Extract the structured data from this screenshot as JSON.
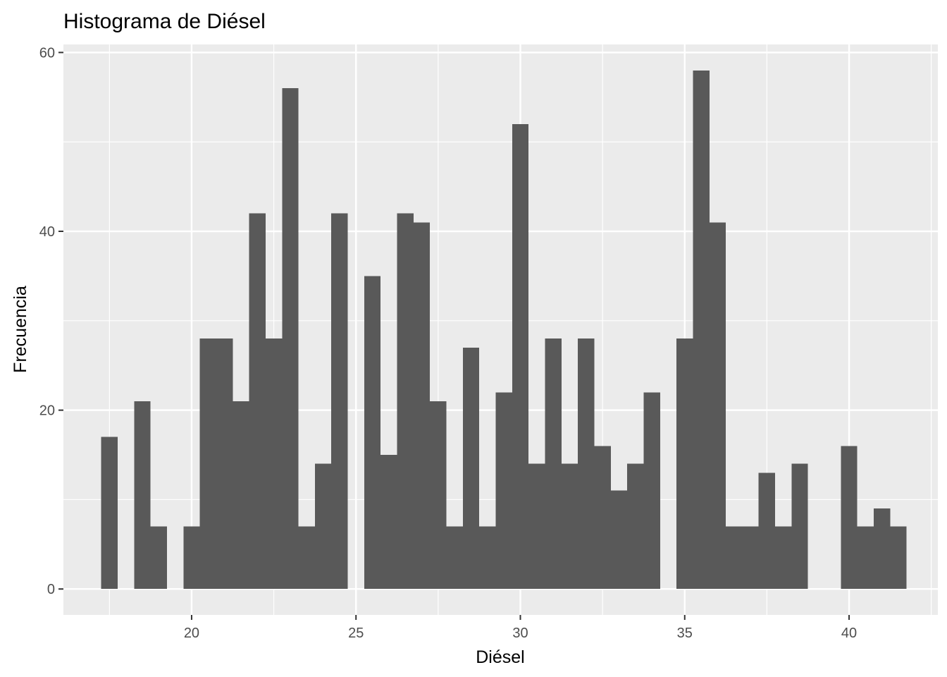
{
  "chart_data": {
    "type": "bar",
    "title": "Histograma de Diésel",
    "xlabel": "Diésel",
    "ylabel": "Frecuencia",
    "xlim": [
      16.1,
      42.7
    ],
    "ylim": [
      -2.9,
      60.9
    ],
    "x_ticks": [
      20,
      25,
      30,
      35,
      40
    ],
    "y_ticks": [
      0,
      20,
      40,
      60
    ],
    "grid": true,
    "bin_width": 0.5,
    "series": [
      {
        "bin_start": [
          17.25,
          17.75,
          18.25,
          18.75,
          19.25,
          19.75,
          20.25,
          20.75,
          21.25,
          21.75,
          22.25,
          22.75,
          23.25,
          23.75,
          24.25,
          24.75,
          25.25,
          25.75,
          26.25,
          26.75,
          27.25,
          27.75,
          28.25,
          28.75,
          29.25,
          29.75,
          30.25,
          30.75,
          31.25,
          31.75,
          32.25,
          32.75,
          33.25,
          33.75,
          34.25,
          34.75,
          35.25,
          35.75,
          36.25,
          36.75,
          37.25,
          37.75,
          38.25,
          38.75,
          39.25,
          39.75,
          40.25,
          40.75,
          41.25
        ],
        "values": [
          17,
          0,
          21,
          7,
          0,
          7,
          28,
          28,
          21,
          42,
          28,
          56,
          7,
          14,
          42,
          0,
          35,
          15,
          42,
          41,
          21,
          7,
          27,
          7,
          22,
          52,
          14,
          28,
          14,
          28,
          16,
          11,
          14,
          22,
          0,
          28,
          58,
          41,
          7,
          7,
          13,
          7,
          14,
          0,
          0,
          16,
          7,
          9,
          7
        ]
      }
    ],
    "colors": {
      "panel": "#ebebeb",
      "grid": "#ffffff",
      "bar": "#595959"
    }
  }
}
